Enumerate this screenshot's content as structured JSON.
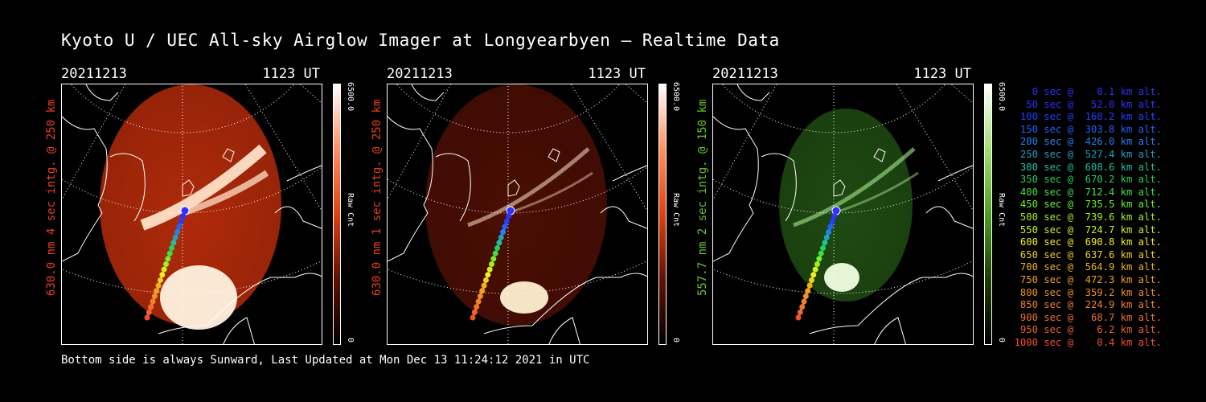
{
  "title": "Kyoto U / UEC All-sky Airglow Imager at Longyearbyen — Realtime Data",
  "footer": "Bottom side is always Sunward, Last Updated at Mon Dec 13 11:24:12 2021 in UTC",
  "panels": [
    {
      "date": "20211213",
      "time": "1123 UT",
      "side_label": "630.0 nm 4 sec intg. @ 250 km",
      "label_color": "#e8401c",
      "cbar_max": "6500.0",
      "cbar_min": "0",
      "cbar_unit": "Raw Cnt",
      "color": "#e04010",
      "brightness": "high"
    },
    {
      "date": "20211213",
      "time": "1123 UT",
      "side_label": "630.0 nm 1 sec intg. @ 250 km",
      "label_color": "#e8401c",
      "cbar_max": "6500.0",
      "cbar_min": "0",
      "cbar_unit": "Raw Cnt",
      "color": "#e04010",
      "brightness": "low"
    },
    {
      "date": "20211213",
      "time": "1123 UT",
      "side_label": "557.7 nm 2 sec intg. @ 150 km",
      "label_color": "#5fc82a",
      "cbar_max": "6500.0",
      "cbar_min": "0",
      "cbar_unit": "Raw Cnt",
      "color": "#4aa020",
      "brightness": "medium"
    }
  ],
  "legend": [
    {
      "text": "   0 sec @    0.1 km alt.",
      "color": "#3030ff"
    },
    {
      "text": "  50 sec @   52.0 km alt.",
      "color": "#3030ff"
    },
    {
      "text": " 100 sec @  160.2 km alt.",
      "color": "#2040ff"
    },
    {
      "text": " 150 sec @  303.8 km alt.",
      "color": "#2060ff"
    },
    {
      "text": " 200 sec @  426.0 km alt.",
      "color": "#2080f0"
    },
    {
      "text": " 250 sec @  527.4 km alt.",
      "color": "#20a0c0"
    },
    {
      "text": " 300 sec @  608.6 km alt.",
      "color": "#20c0a0"
    },
    {
      "text": " 350 sec @  670.2 km alt.",
      "color": "#20d060"
    },
    {
      "text": " 400 sec @  712.4 km alt.",
      "color": "#40e040"
    },
    {
      "text": " 450 sec @  735.5 km alt.",
      "color": "#70f030"
    },
    {
      "text": " 500 sec @  739.6 km alt.",
      "color": "#a0f020"
    },
    {
      "text": " 550 sec @  724.7 km alt.",
      "color": "#d0f020"
    },
    {
      "text": " 600 sec @  690.8 km alt.",
      "color": "#f0f020"
    },
    {
      "text": " 650 sec @  637.6 km alt.",
      "color": "#f0d020"
    },
    {
      "text": " 700 sec @  564.9 km alt.",
      "color": "#f0b020"
    },
    {
      "text": " 750 sec @  472.3 km alt.",
      "color": "#f0a020"
    },
    {
      "text": " 800 sec @  359.2 km alt.",
      "color": "#f09020"
    },
    {
      "text": " 850 sec @  224.9 km alt.",
      "color": "#f08030"
    },
    {
      "text": " 900 sec @   68.7 km alt.",
      "color": "#f07030"
    },
    {
      "text": " 950 sec @    6.2 km alt.",
      "color": "#f06030"
    },
    {
      "text": "1000 sec @    0.4 km alt.",
      "color": "#f05030"
    }
  ]
}
